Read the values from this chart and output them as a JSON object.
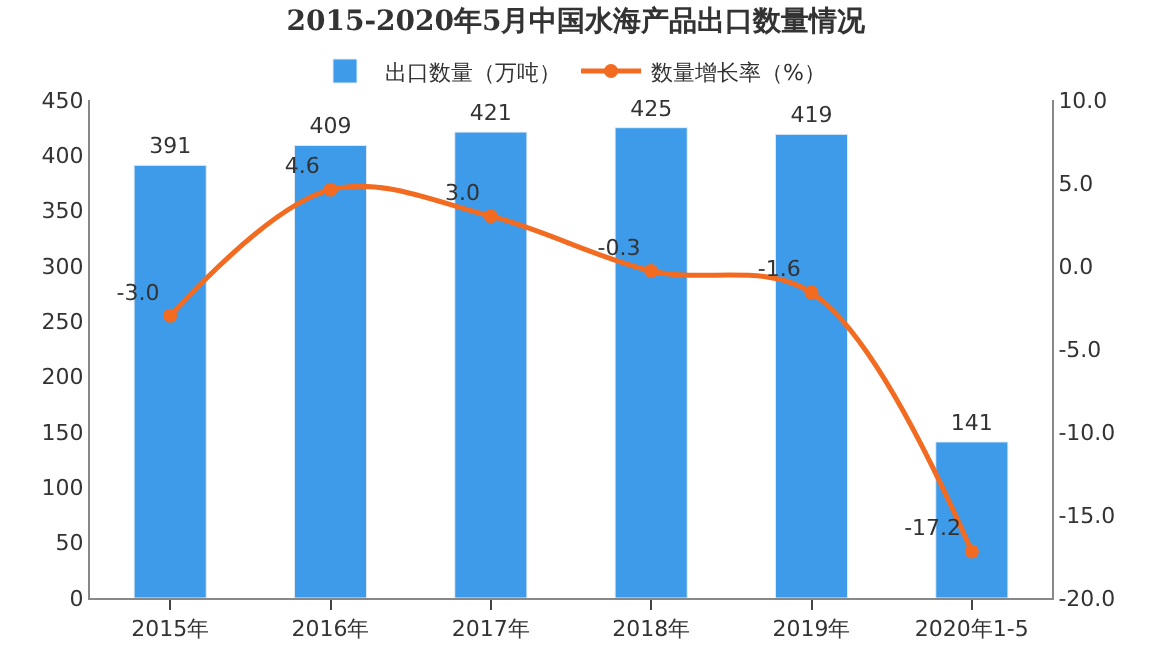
{
  "chart_data": {
    "type": "bar",
    "title": "2015-2020年5月中国水海产品出口数量情况",
    "categories": [
      "2015年",
      "2016年",
      "2017年",
      "2018年",
      "2019年",
      "2020年1-5"
    ],
    "series": [
      {
        "name": "出口数量（万吨）",
        "color": "#3d9be9",
        "values": [
          391,
          409,
          421,
          425,
          419,
          141
        ],
        "value_labels": [
          "391",
          "409",
          "421",
          "425",
          "419",
          "141"
        ]
      },
      {
        "name": "数量增长率（%）",
        "type": "line",
        "axis": "y2",
        "color": "#f26b21",
        "values": [
          -3.0,
          4.6,
          3.0,
          -0.3,
          -1.6,
          -17.2
        ],
        "value_labels": [
          "-3.0",
          "4.6",
          "3.0",
          "-0.3",
          "-1.6",
          "-17.2"
        ]
      }
    ],
    "ylim": [
      0,
      450
    ],
    "yticks": [
      0,
      50,
      100,
      150,
      200,
      250,
      300,
      350,
      400,
      450
    ],
    "y2lim": [
      -20,
      10
    ],
    "y2ticks": [
      {
        "value": 10,
        "label": "10.0"
      },
      {
        "value": 5,
        "label": "5.0"
      },
      {
        "value": 0,
        "label": "0.0"
      },
      {
        "value": -5,
        "label": "-5.0"
      },
      {
        "value": -10,
        "label": "-10.0"
      },
      {
        "value": -15,
        "label": "-15.0"
      },
      {
        "value": -20,
        "label": "-20.0"
      }
    ],
    "marker": "circle",
    "legend": "top"
  }
}
